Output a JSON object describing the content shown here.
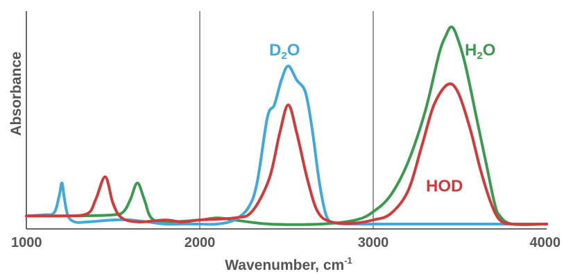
{
  "chart_data": {
    "type": "line",
    "title": "",
    "xlabel": "Wavenumber, cm",
    "xlabel_superscript": "-1",
    "ylabel": "Absorbance",
    "xlim": [
      1000,
      4000
    ],
    "ylim": [
      0,
      1
    ],
    "x_ticks": [
      "1000",
      "2000",
      "3000",
      "4000"
    ],
    "y_ticks": [],
    "grid": {
      "vertical_at": [
        2000,
        3000
      ],
      "horizontal": false
    },
    "legend": "inline labels",
    "series": [
      {
        "name": "D2O",
        "label_main": "D",
        "label_sub": "2",
        "label_end": "O",
        "color": "#3fa8dd",
        "points": [
          [
            1000,
            0.04
          ],
          [
            1100,
            0.045
          ],
          [
            1160,
            0.055
          ],
          [
            1190,
            0.14
          ],
          [
            1205,
            0.2
          ],
          [
            1220,
            0.12
          ],
          [
            1240,
            0.04
          ],
          [
            1280,
            0.01
          ],
          [
            1350,
            0.01
          ],
          [
            1500,
            0.02
          ],
          [
            1600,
            0.02
          ],
          [
            1700,
            0.01
          ],
          [
            1800,
            0.0
          ],
          [
            1900,
            0.0
          ],
          [
            2000,
            0.0
          ],
          [
            2100,
            0.0
          ],
          [
            2200,
            0.02
          ],
          [
            2280,
            0.08
          ],
          [
            2330,
            0.2
          ],
          [
            2390,
            0.52
          ],
          [
            2430,
            0.58
          ],
          [
            2470,
            0.7
          ],
          [
            2510,
            0.77
          ],
          [
            2560,
            0.7
          ],
          [
            2610,
            0.64
          ],
          [
            2650,
            0.45
          ],
          [
            2690,
            0.2
          ],
          [
            2730,
            0.04
          ],
          [
            2780,
            0.005
          ],
          [
            2900,
            0.0
          ],
          [
            3100,
            0.0
          ],
          [
            3500,
            0.0
          ],
          [
            4000,
            0.0
          ]
        ]
      },
      {
        "name": "H2O",
        "label_main": "H",
        "label_sub": "2",
        "label_end": "O",
        "color": "#3a9b4f",
        "points": [
          [
            1000,
            0.04
          ],
          [
            1300,
            0.04
          ],
          [
            1500,
            0.045
          ],
          [
            1560,
            0.06
          ],
          [
            1600,
            0.12
          ],
          [
            1640,
            0.2
          ],
          [
            1680,
            0.12
          ],
          [
            1720,
            0.03
          ],
          [
            1800,
            0.01
          ],
          [
            2000,
            0.02
          ],
          [
            2100,
            0.03
          ],
          [
            2200,
            0.02
          ],
          [
            2400,
            0.0
          ],
          [
            2700,
            0.0
          ],
          [
            2900,
            0.02
          ],
          [
            3000,
            0.06
          ],
          [
            3100,
            0.14
          ],
          [
            3200,
            0.3
          ],
          [
            3300,
            0.55
          ],
          [
            3380,
            0.83
          ],
          [
            3420,
            0.92
          ],
          [
            3450,
            0.96
          ],
          [
            3480,
            0.92
          ],
          [
            3530,
            0.78
          ],
          [
            3600,
            0.5
          ],
          [
            3650,
            0.3
          ],
          [
            3700,
            0.1
          ],
          [
            3730,
            0.04
          ],
          [
            3800,
            0.0
          ],
          [
            4000,
            0.0
          ]
        ]
      },
      {
        "name": "HOD",
        "label_main": "HOD",
        "label_sub": "",
        "label_end": "",
        "color": "#d23a3a",
        "points": [
          [
            1000,
            0.04
          ],
          [
            1200,
            0.04
          ],
          [
            1350,
            0.05
          ],
          [
            1400,
            0.12
          ],
          [
            1455,
            0.23
          ],
          [
            1500,
            0.1
          ],
          [
            1550,
            0.03
          ],
          [
            1650,
            0.01
          ],
          [
            1800,
            0.02
          ],
          [
            1900,
            0.01
          ],
          [
            2000,
            0.02
          ],
          [
            2200,
            0.03
          ],
          [
            2300,
            0.06
          ],
          [
            2400,
            0.22
          ],
          [
            2460,
            0.44
          ],
          [
            2510,
            0.58
          ],
          [
            2560,
            0.44
          ],
          [
            2620,
            0.22
          ],
          [
            2680,
            0.06
          ],
          [
            2760,
            0.01
          ],
          [
            2900,
            0.005
          ],
          [
            3000,
            0.02
          ],
          [
            3100,
            0.05
          ],
          [
            3200,
            0.16
          ],
          [
            3280,
            0.38
          ],
          [
            3350,
            0.58
          ],
          [
            3430,
            0.68
          ],
          [
            3490,
            0.64
          ],
          [
            3560,
            0.46
          ],
          [
            3620,
            0.26
          ],
          [
            3680,
            0.1
          ],
          [
            3730,
            0.02
          ],
          [
            3800,
            0.0
          ],
          [
            4000,
            0.0
          ]
        ]
      }
    ]
  }
}
